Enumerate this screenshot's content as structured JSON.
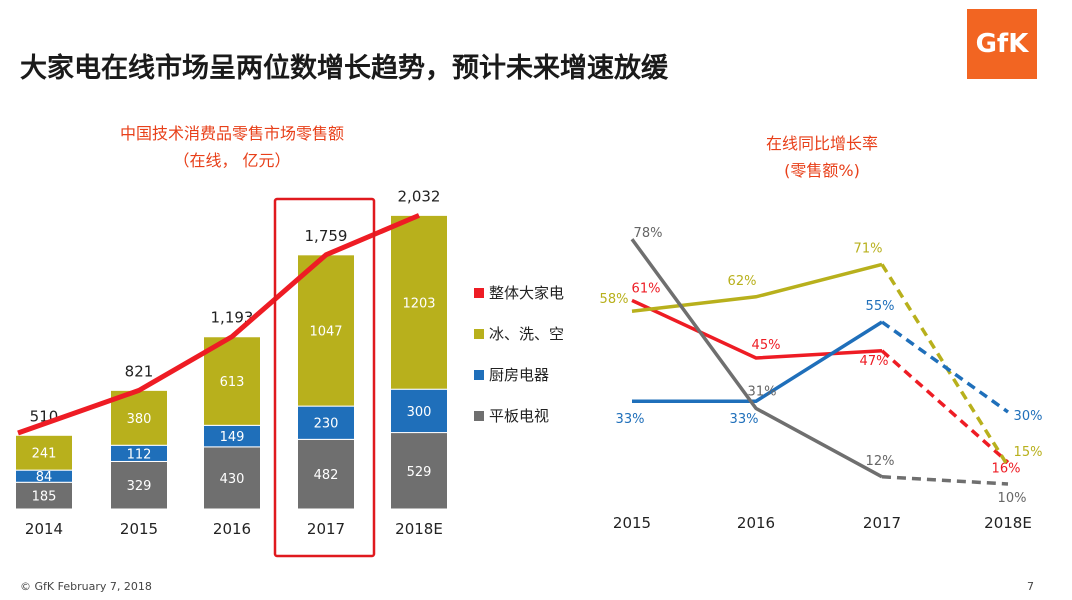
{
  "page": {
    "title": "大家电在线市场呈两位数增长趋势，预计未来增速放缓",
    "logo": "GfK",
    "footer": "© GfK February 7, 2018",
    "page_number": "7"
  },
  "colors": {
    "red": "#ee1c24",
    "olive": "#b8b01c",
    "blue": "#1f6fba",
    "gray": "#6f6f6f"
  },
  "chart_data": [
    {
      "type": "bar",
      "stacked": true,
      "title": "中国技术消费品零售市场零售额",
      "subtitle": "（在线， 亿元）",
      "categories": [
        "2014",
        "2015",
        "2016",
        "2017",
        "2018E"
      ],
      "series": [
        {
          "name": "平板电视",
          "values": [
            185,
            329,
            430,
            482,
            529
          ]
        },
        {
          "name": "厨房电器",
          "values": [
            84,
            112,
            149,
            230,
            300
          ]
        },
        {
          "name": "冰、洗、空",
          "values": [
            241,
            380,
            613,
            1047,
            1203
          ]
        }
      ],
      "totals": [
        510,
        821,
        1193,
        1759,
        2032
      ],
      "total_labels": [
        "510",
        "821",
        "1,193",
        "1,759",
        "2,032"
      ],
      "overlay_line": {
        "name": "整体大家电",
        "values": [
          510,
          821,
          1193,
          1759,
          2032
        ]
      },
      "highlight_category": "2017"
    },
    {
      "type": "line",
      "title": "在线同比增长率",
      "subtitle": "(零售额%)",
      "categories": [
        "2015",
        "2016",
        "2017",
        "2018E"
      ],
      "forecast_from": "2017",
      "series": [
        {
          "name": "整体大家电",
          "values": [
            61,
            45,
            47,
            16
          ],
          "labels": [
            "61%",
            "45%",
            "47%",
            "16%"
          ]
        },
        {
          "name": "冰、洗、空",
          "values": [
            58,
            62,
            71,
            15
          ],
          "labels": [
            "58%",
            "62%",
            "71%",
            "15%"
          ]
        },
        {
          "name": "厨房电器",
          "values": [
            33,
            33,
            55,
            30
          ],
          "labels": [
            "33%",
            "33%",
            "55%",
            "30%"
          ]
        },
        {
          "name": "平板电视",
          "values": [
            78,
            31,
            12,
            10
          ],
          "labels": [
            "78%",
            "31%",
            "12%",
            "10%"
          ]
        }
      ]
    }
  ],
  "legend": [
    {
      "label": "整体大家电",
      "color": "#ee1c24"
    },
    {
      "label": "冰、洗、空",
      "color": "#b8b01c"
    },
    {
      "label": "厨房电器",
      "color": "#1f6fba"
    },
    {
      "label": "平板电视",
      "color": "#6f6f6f"
    }
  ]
}
